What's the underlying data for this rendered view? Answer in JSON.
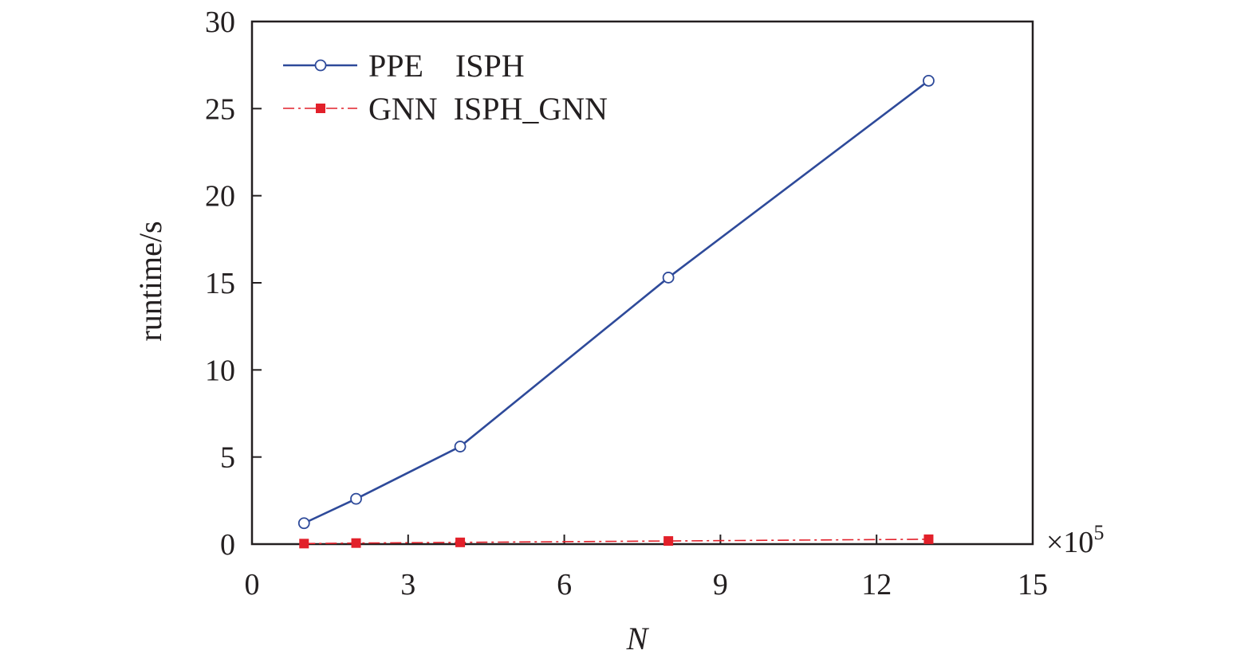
{
  "chart_data": {
    "type": "line",
    "xlabel": "N",
    "ylabel": "runtime/s",
    "x_multiplier_label": "×10",
    "x_multiplier_exp": "5",
    "xlim": [
      0,
      15
    ],
    "ylim": [
      0,
      30
    ],
    "xticks": [
      0,
      3,
      6,
      9,
      12,
      15
    ],
    "yticks": [
      0,
      5,
      10,
      15,
      20,
      25,
      30
    ],
    "grid": false,
    "legend_position": "top-left",
    "series": [
      {
        "name": "PPE    ISPH",
        "color": "#2e4a9a",
        "marker": "open-circle",
        "line_style": "solid",
        "x": [
          1,
          2,
          4,
          8,
          13
        ],
        "y": [
          1.2,
          2.6,
          5.6,
          15.3,
          26.6
        ]
      },
      {
        "name": "GNN  ISPH_GNN",
        "color": "#e2202a",
        "marker": "filled-square",
        "line_style": "dash-dot",
        "x": [
          1,
          2,
          4,
          8,
          13
        ],
        "y": [
          0.03,
          0.06,
          0.1,
          0.18,
          0.28
        ]
      }
    ]
  }
}
